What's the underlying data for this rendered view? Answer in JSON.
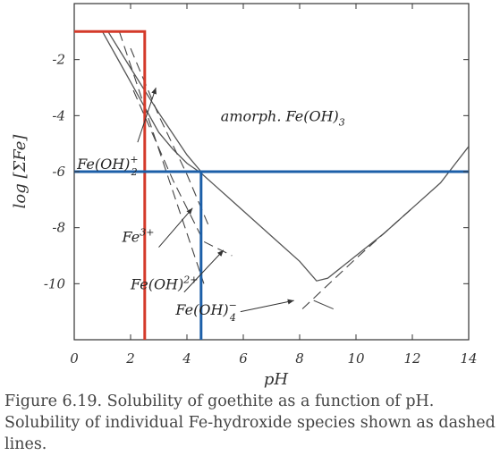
{
  "chart_data": {
    "type": "line",
    "xlabel": "pH",
    "ylabel": "log [ΣFe]",
    "xlim": [
      0,
      14
    ],
    "ylim": [
      -12,
      0
    ],
    "x_ticks": [
      "0",
      "2",
      "4",
      "6",
      "8",
      "10",
      "12",
      "14"
    ],
    "y_ticks": [
      "-2",
      "-4",
      "-6",
      "-8",
      "-10"
    ],
    "annotations": [
      {
        "text": "amorph. Fe(OH)",
        "sub": "3",
        "sup": "",
        "x": 5.2,
        "y": -4.2
      },
      {
        "text": "Fe(OH)",
        "sub": "2",
        "sup": "+",
        "x": 0.1,
        "y": -5.9
      },
      {
        "text": "Fe",
        "sub": "",
        "sup": "3+",
        "x": 1.7,
        "y": -8.5
      },
      {
        "text": "Fe(OH)",
        "sub": "",
        "sup": "2+",
        "x": 2.0,
        "y": -10.2
      },
      {
        "text": "Fe(OH)",
        "sub": "4",
        "sup": "−",
        "x": 3.6,
        "y": -11.1
      }
    ],
    "series": [
      {
        "style": "solid-thin",
        "color": "#555555",
        "points": [
          [
            1.0,
            -1.0
          ],
          [
            1.5,
            -1.9
          ],
          [
            2.0,
            -2.8
          ],
          [
            2.5,
            -3.7
          ],
          [
            3.0,
            -4.6
          ],
          [
            3.5,
            -5.2
          ],
          [
            4.0,
            -5.7
          ],
          [
            4.5,
            -6.05
          ],
          [
            5.0,
            -6.5
          ],
          [
            6.0,
            -7.4
          ],
          [
            7.0,
            -8.3
          ],
          [
            8.0,
            -9.2
          ],
          [
            8.6,
            -9.9
          ],
          [
            9.0,
            -9.8
          ],
          [
            10.0,
            -9.0
          ],
          [
            11.0,
            -8.2
          ],
          [
            12.0,
            -7.3
          ],
          [
            13.0,
            -6.4
          ],
          [
            14.0,
            -5.1
          ]
        ]
      },
      {
        "style": "solid-thin",
        "color": "#555555",
        "points": [
          [
            1.2,
            -1.0
          ],
          [
            2.0,
            -2.3
          ],
          [
            3.0,
            -3.9
          ],
          [
            4.0,
            -5.4
          ],
          [
            4.5,
            -6.0
          ]
        ]
      },
      {
        "style": "dashed",
        "color": "#444444",
        "points": [
          [
            2.0,
            -1.6
          ],
          [
            3.0,
            -4.0
          ],
          [
            4.0,
            -6.1
          ],
          [
            4.8,
            -8.0
          ]
        ]
      },
      {
        "style": "dashed",
        "color": "#444444",
        "points": [
          [
            1.6,
            -1.0
          ],
          [
            3.0,
            -5.2
          ],
          [
            4.0,
            -8.2
          ],
          [
            4.6,
            -10.0
          ]
        ]
      },
      {
        "style": "dashed",
        "color": "#444444",
        "points": [
          [
            2.1,
            -3.1
          ],
          [
            3.5,
            -6.3
          ],
          [
            4.6,
            -8.5
          ],
          [
            5.6,
            -9.0
          ]
        ]
      },
      {
        "style": "dashed",
        "color": "#444444",
        "points": [
          [
            8.1,
            -10.9
          ],
          [
            10.0,
            -9.1
          ],
          [
            12.0,
            -7.3
          ]
        ]
      }
    ],
    "reference_lines": [
      {
        "color": "#d43a2a",
        "points": [
          [
            0.0,
            -1.0
          ],
          [
            2.5,
            -1.0
          ],
          [
            2.5,
            -12.0
          ]
        ]
      },
      {
        "color": "#1c5fa8",
        "points": [
          [
            0.0,
            -6.0
          ],
          [
            14.0,
            -6.0
          ]
        ]
      },
      {
        "color": "#1c5fa8",
        "points": [
          [
            4.5,
            -6.0
          ],
          [
            4.5,
            -12.0
          ]
        ]
      }
    ]
  },
  "caption": "Figure 6.19. Solubility of goethite as a function of pH. Solubility of individual Fe-hydroxide species shown as dashed lines."
}
